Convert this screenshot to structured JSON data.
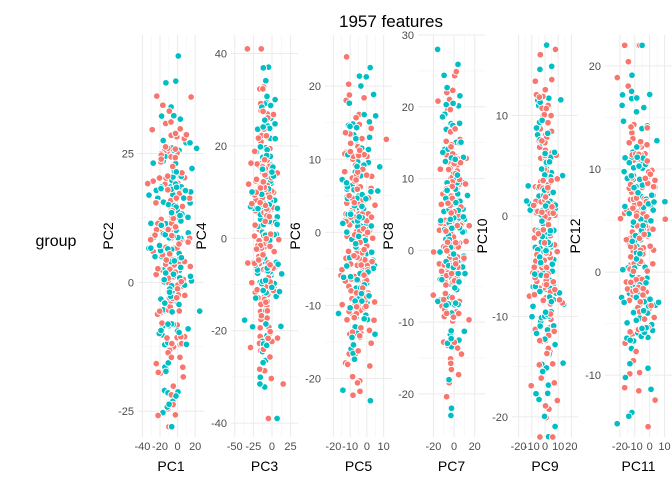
{
  "title": "1957 features",
  "legend": {
    "title": "group"
  },
  "colors": {
    "group_a": "#F8766D",
    "group_b": "#00BFC4"
  },
  "chart_data": [
    {
      "type": "scatter",
      "xlabel": "PC1",
      "ylabel": "PC2",
      "xlim": [
        -45,
        30
      ],
      "ylim": [
        -30,
        48
      ],
      "xticks": [
        -40,
        -20,
        0,
        20
      ],
      "xtick_labels": [
        "-40",
        "-20",
        "0",
        "20"
      ],
      "yticks": [
        -25,
        0,
        25
      ],
      "ytick_labels": [
        "-25",
        "0",
        "25"
      ],
      "x_spread": 10,
      "y_extent": [
        -28,
        45
      ]
    },
    {
      "type": "scatter",
      "xlabel": "PC3",
      "ylabel": "PC4",
      "xlim": [
        -55,
        35
      ],
      "ylim": [
        -43,
        44
      ],
      "xticks": [
        -50,
        -25,
        0,
        25
      ],
      "xtick_labels": [
        "-50",
        "-25",
        "0",
        "25"
      ],
      "yticks": [
        -40,
        -20,
        0,
        20,
        40
      ],
      "ytick_labels": [
        "-40",
        "-20",
        "0",
        "20",
        "40"
      ],
      "x_spread": 9,
      "y_extent": [
        -39,
        41
      ]
    },
    {
      "type": "scatter",
      "xlabel": "PC5",
      "ylabel": "PC6",
      "xlim": [
        -25,
        15
      ],
      "ylim": [
        -28,
        27
      ],
      "xticks": [
        -20,
        -10,
        0,
        10
      ],
      "xtick_labels": [
        "-20",
        "-10",
        "0",
        "10"
      ],
      "yticks": [
        -20,
        -10,
        0,
        10,
        20
      ],
      "ytick_labels": [
        "-20",
        "-10",
        "0",
        "10",
        "20"
      ],
      "x_spread": 5,
      "y_extent": [
        -26,
        24
      ]
    },
    {
      "type": "scatter",
      "xlabel": "PC7",
      "ylabel": "PC8",
      "xlim": [
        -35,
        30
      ],
      "ylim": [
        -26,
        30
      ],
      "xticks": [
        -20,
        0,
        20
      ],
      "xtick_labels": [
        "-20",
        "0",
        "20"
      ],
      "yticks": [
        -20,
        -10,
        0,
        10,
        20,
        30
      ],
      "ytick_labels": [
        "-20",
        "-10",
        "0",
        "10",
        "20",
        "30"
      ],
      "x_spread": 6,
      "y_extent": [
        -23,
        28
      ]
    },
    {
      "type": "scatter",
      "xlabel": "PC9",
      "ylabel": "PC10",
      "xlim": [
        -25,
        25
      ],
      "ylim": [
        -22,
        18
      ],
      "xticks": [
        -20,
        -10,
        0,
        10,
        20
      ],
      "xtick_labels": [
        "-20",
        "-10",
        "0",
        "10",
        "20"
      ],
      "yticks": [
        -20,
        -10,
        0,
        10
      ],
      "ytick_labels": [
        "-20",
        "-10",
        "0",
        "10"
      ],
      "x_spread": 5,
      "y_extent": [
        -22,
        17
      ]
    },
    {
      "type": "scatter",
      "xlabel": "PC11",
      "ylabel": "PC12",
      "xlim": [
        -30,
        15
      ],
      "ylim": [
        -16,
        23
      ],
      "xticks": [
        -20,
        -10,
        0,
        10
      ],
      "xtick_labels": [
        "-20",
        "-10",
        "0",
        "10"
      ],
      "yticks": [
        -10,
        0,
        10,
        20
      ],
      "ytick_labels": [
        "-10",
        "0",
        "10",
        "20"
      ],
      "x_spread": 6,
      "y_extent": [
        -15,
        22
      ]
    }
  ]
}
